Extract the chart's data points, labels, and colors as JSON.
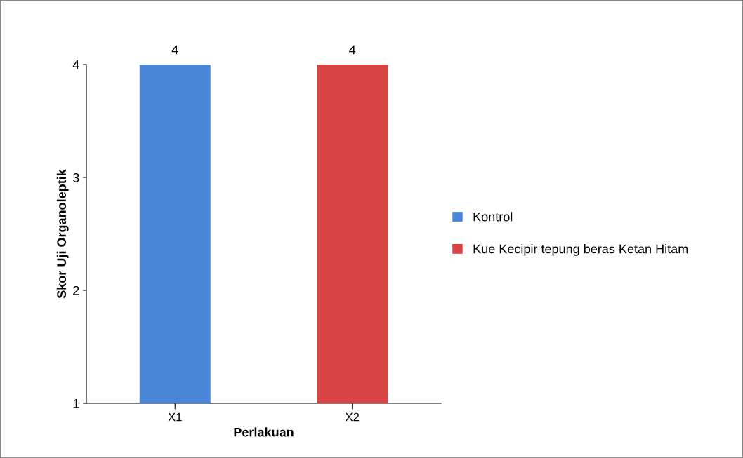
{
  "chart_data": {
    "type": "bar",
    "xlabel": "Perlakuan",
    "ylabel": "Skor Uji Organoleptik",
    "categories": [
      "X1",
      "X2"
    ],
    "series": [
      {
        "name": "Kontrol",
        "color": "#4a86d8",
        "values": [
          4,
          null
        ]
      },
      {
        "name": "Kue Kecipir tepung beras Ketan Hitam",
        "color": "#d84444",
        "values": [
          null,
          4
        ]
      }
    ],
    "ylim": [
      1,
      4
    ],
    "yticks": [
      1,
      2,
      3,
      4
    ],
    "data_labels": true,
    "grid": false,
    "legend": "right"
  }
}
